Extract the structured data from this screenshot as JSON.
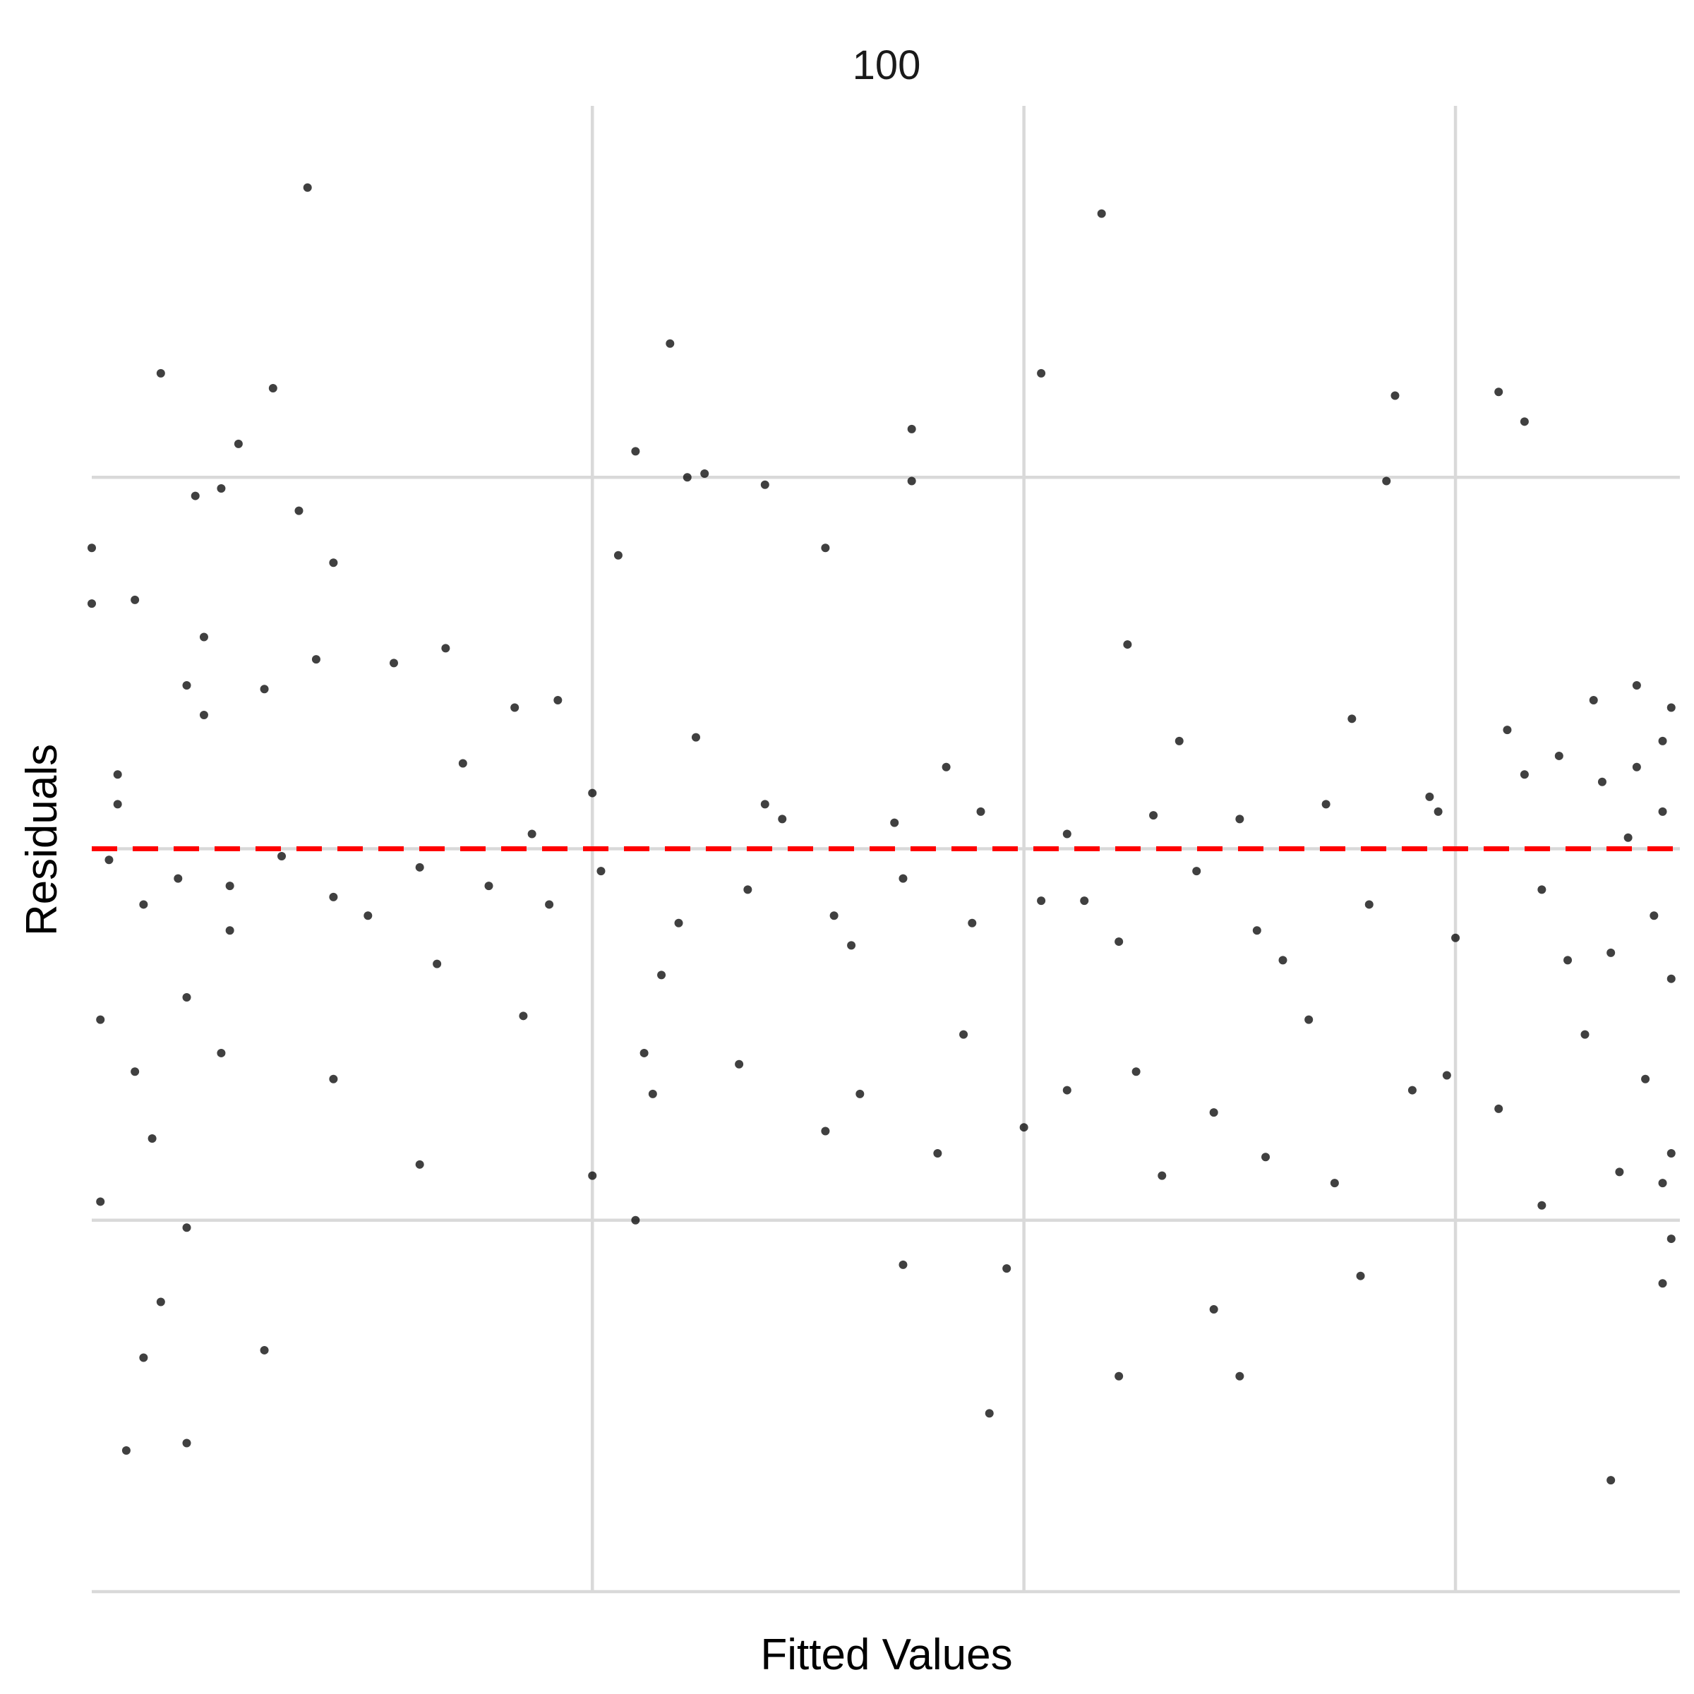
{
  "chart_data": {
    "type": "scatter",
    "title": "100",
    "xlabel": "Fitted Values",
    "ylabel": "Residuals",
    "x_range": [
      -0.58,
      1.26
    ],
    "y_range": [
      -2.0,
      2.0
    ],
    "x_gridlines": [
      0,
      0.5,
      1
    ],
    "y_gridlines": [
      -2,
      -1,
      0,
      1
    ],
    "reference_line": {
      "y": 0,
      "color": "#ff0000",
      "style": "dashed"
    },
    "grid": true,
    "legend": "none",
    "point_color": "#000000",
    "points": [
      [
        -0.33,
        1.78
      ],
      [
        0.59,
        1.71
      ],
      [
        0.09,
        1.36
      ],
      [
        -0.5,
        1.28
      ],
      [
        -0.37,
        1.24
      ],
      [
        0.05,
        1.07
      ],
      [
        -0.41,
        1.09
      ],
      [
        0.52,
        1.28
      ],
      [
        0.13,
        1.01
      ],
      [
        0.93,
        1.22
      ],
      [
        1.08,
        1.15
      ],
      [
        0.37,
        1.13
      ],
      [
        1.05,
        1.23
      ],
      [
        0.2,
        0.98
      ],
      [
        0.92,
        0.99
      ],
      [
        0.11,
        1.0
      ],
      [
        -0.34,
        0.91
      ],
      [
        -0.43,
        0.97
      ],
      [
        -0.46,
        0.95
      ],
      [
        -0.53,
        0.67
      ],
      [
        -0.58,
        0.66
      ],
      [
        -0.58,
        0.81
      ],
      [
        -0.47,
        0.44
      ],
      [
        -0.32,
        0.51
      ],
      [
        -0.45,
        0.57
      ],
      [
        -0.3,
        0.77
      ],
      [
        0.03,
        0.79
      ],
      [
        0.27,
        0.81
      ],
      [
        0.37,
        0.99
      ],
      [
        0.62,
        0.55
      ],
      [
        -0.55,
        0.2
      ],
      [
        -0.55,
        0.12
      ],
      [
        -0.45,
        0.36
      ],
      [
        -0.38,
        0.43
      ],
      [
        -0.23,
        0.5
      ],
      [
        -0.17,
        0.54
      ],
      [
        -0.09,
        0.38
      ],
      [
        -0.07,
        0.04
      ],
      [
        0.0,
        0.15
      ],
      [
        0.12,
        0.3
      ],
      [
        0.22,
        0.08
      ],
      [
        0.35,
        0.07
      ],
      [
        0.45,
        0.1
      ],
      [
        0.55,
        0.04
      ],
      [
        0.65,
        0.09
      ],
      [
        0.75,
        0.08
      ],
      [
        0.85,
        0.12
      ],
      [
        0.97,
        0.14
      ],
      [
        1.08,
        0.2
      ],
      [
        1.12,
        0.25
      ],
      [
        1.17,
        0.18
      ],
      [
        1.21,
        0.22
      ],
      [
        1.24,
        0.29
      ],
      [
        1.24,
        0.1
      ],
      [
        1.2,
        0.03
      ],
      [
        -0.56,
        -0.03
      ],
      [
        -0.52,
        -0.15
      ],
      [
        -0.48,
        -0.08
      ],
      [
        -0.42,
        -0.1
      ],
      [
        -0.36,
        -0.02
      ],
      [
        -0.3,
        -0.13
      ],
      [
        -0.2,
        -0.05
      ],
      [
        -0.12,
        -0.1
      ],
      [
        -0.05,
        -0.15
      ],
      [
        0.01,
        -0.06
      ],
      [
        0.1,
        -0.2
      ],
      [
        0.18,
        -0.11
      ],
      [
        0.28,
        -0.18
      ],
      [
        0.36,
        -0.08
      ],
      [
        0.44,
        -0.2
      ],
      [
        0.52,
        -0.14
      ],
      [
        0.61,
        -0.25
      ],
      [
        0.7,
        -0.06
      ],
      [
        0.8,
        -0.3
      ],
      [
        0.9,
        -0.15
      ],
      [
        1.0,
        -0.24
      ],
      [
        1.1,
        -0.11
      ],
      [
        1.18,
        -0.28
      ],
      [
        1.23,
        -0.18
      ],
      [
        1.25,
        -0.35
      ],
      [
        -0.57,
        -0.46
      ],
      [
        -0.53,
        -0.6
      ],
      [
        -0.47,
        -0.4
      ],
      [
        -0.43,
        -0.55
      ],
      [
        -0.3,
        -0.62
      ],
      [
        -0.18,
        -0.31
      ],
      [
        -0.08,
        -0.45
      ],
      [
        0.06,
        -0.55
      ],
      [
        0.17,
        -0.58
      ],
      [
        0.31,
        -0.66
      ],
      [
        0.43,
        -0.5
      ],
      [
        0.5,
        -0.75
      ],
      [
        0.63,
        -0.6
      ],
      [
        0.72,
        -0.71
      ],
      [
        0.83,
        -0.46
      ],
      [
        0.95,
        -0.65
      ],
      [
        1.05,
        -0.7
      ],
      [
        1.15,
        -0.5
      ],
      [
        1.22,
        -0.62
      ],
      [
        1.25,
        -0.82
      ],
      [
        -0.57,
        -0.95
      ],
      [
        -0.51,
        -0.78
      ],
      [
        -0.2,
        -0.85
      ],
      [
        0.0,
        -0.88
      ],
      [
        0.07,
        -0.66
      ],
      [
        0.27,
        -0.76
      ],
      [
        0.4,
        -0.82
      ],
      [
        0.55,
        -0.65
      ],
      [
        0.66,
        -0.88
      ],
      [
        0.78,
        -0.83
      ],
      [
        0.86,
        -0.9
      ],
      [
        0.99,
        -0.61
      ],
      [
        1.1,
        -0.96
      ],
      [
        1.19,
        -0.87
      ],
      [
        1.24,
        -0.9
      ],
      [
        -0.54,
        -1.62
      ],
      [
        -0.52,
        -1.37
      ],
      [
        -0.5,
        -1.22
      ],
      [
        -0.47,
        -1.6
      ],
      [
        -0.47,
        -1.02
      ],
      [
        -0.38,
        -1.35
      ],
      [
        0.05,
        -1.0
      ],
      [
        0.36,
        -1.12
      ],
      [
        0.46,
        -1.52
      ],
      [
        0.48,
        -1.13
      ],
      [
        0.61,
        -1.42
      ],
      [
        0.72,
        -1.24
      ],
      [
        0.75,
        -1.42
      ],
      [
        0.89,
        -1.15
      ],
      [
        1.18,
        -1.7
      ],
      [
        1.24,
        -1.17
      ],
      [
        1.25,
        -1.05
      ],
      [
        -0.42,
        -0.22
      ],
      [
        -0.26,
        -0.18
      ],
      [
        -0.15,
        0.23
      ],
      [
        -0.04,
        0.4
      ],
      [
        0.08,
        -0.34
      ],
      [
        0.2,
        0.12
      ],
      [
        0.3,
        -0.26
      ],
      [
        0.41,
        0.22
      ],
      [
        0.57,
        -0.14
      ],
      [
        0.68,
        0.29
      ],
      [
        0.77,
        -0.22
      ],
      [
        0.88,
        0.35
      ],
      [
        0.98,
        0.1
      ],
      [
        1.06,
        0.32
      ],
      [
        1.13,
        -0.3
      ],
      [
        1.16,
        0.4
      ],
      [
        1.21,
        0.44
      ],
      [
        1.25,
        0.38
      ]
    ]
  }
}
